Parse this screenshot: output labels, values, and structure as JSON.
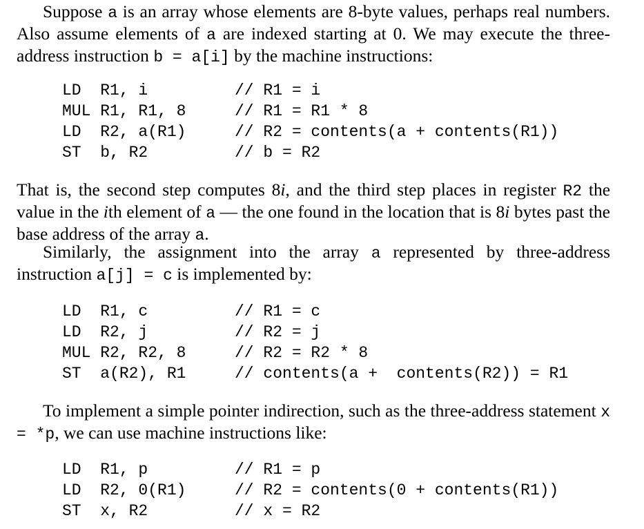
{
  "paragraph1": {
    "t1": "Suppose ",
    "c1": "a",
    "t2": " is an array whose elements are 8-byte values, perhaps real numbers. Also assume elements of ",
    "c2": "a",
    "t3": " are indexed starting at 0. We may execute the three-address instruction ",
    "c3": "b = a[i]",
    "t4": " by the machine instructions:"
  },
  "code1": [
    {
      "instr": "LD  R1, i",
      "comment": "// R1 = i"
    },
    {
      "instr": "MUL R1, R1, 8",
      "comment": "// R1 = R1 * 8"
    },
    {
      "instr": "LD  R2, a(R1)",
      "comment": "// R2 = contents(a + contents(R1))"
    },
    {
      "instr": "ST  b, R2",
      "comment": "// b = R2"
    }
  ],
  "paragraph2": {
    "t1": "That is, the second step computes 8",
    "i1": "i",
    "t2": ", and the third step places in register ",
    "c1": "R2",
    "t3": " the value in the ",
    "i2": "i",
    "t4": "th element of ",
    "c2": "a",
    "t5": " — the one found in the location that is 8",
    "i3": "i",
    "t6": " bytes past the base address of the array ",
    "c3": "a",
    "t7": "."
  },
  "paragraph3": {
    "t1": "Similarly, the assignment into the array ",
    "c1": "a",
    "t2": " represented by three-address instruction ",
    "c2": "a[j] = c",
    "t3": " is implemented by:"
  },
  "code2": [
    {
      "instr": "LD  R1, c",
      "comment": "// R1 = c"
    },
    {
      "instr": "LD  R2, j",
      "comment": "// R2 = j"
    },
    {
      "instr": "MUL R2, R2, 8",
      "comment": "// R2 = R2 * 8"
    },
    {
      "instr": "ST  a(R2), R1",
      "comment": "// contents(a +  contents(R2)) = R1"
    }
  ],
  "paragraph4": {
    "t1": "To implement a simple pointer indirection, such as the three-address statement ",
    "c1": "x = *p",
    "t2": ", we can use machine instructions like:"
  },
  "code3": [
    {
      "instr": "LD  R1, p",
      "comment": "// R1 = p"
    },
    {
      "instr": "LD  R2, 0(R1)",
      "comment": "// R2 = contents(0 + contents(R1))"
    },
    {
      "instr": "ST  x, R2",
      "comment": "// x = R2"
    }
  ]
}
